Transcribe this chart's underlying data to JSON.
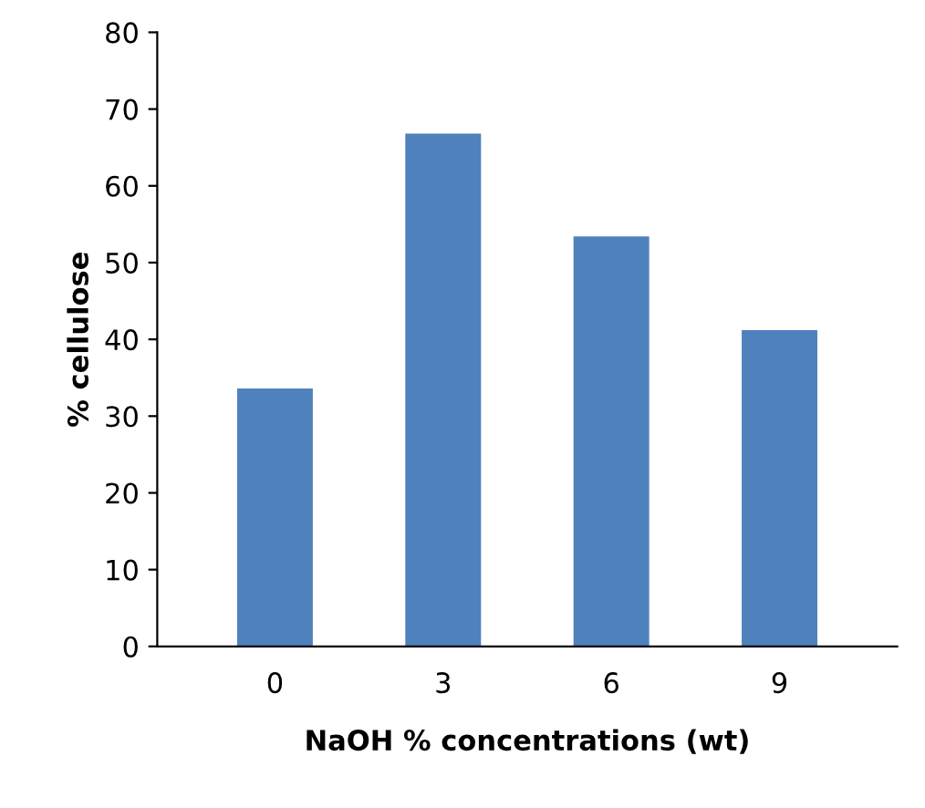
{
  "chart_data": {
    "type": "bar",
    "xlabel": "NaOH % concentrations (wt)",
    "ylabel": "% cellulose",
    "categories": [
      "0",
      "3",
      "6",
      "9"
    ],
    "values": [
      33.6,
      66.8,
      53.4,
      41.2
    ],
    "color": "#4f81bd",
    "ylim": [
      0,
      80
    ],
    "yticks": [
      0,
      10,
      20,
      30,
      40,
      50,
      60,
      70,
      80
    ],
    "grid": false
  }
}
